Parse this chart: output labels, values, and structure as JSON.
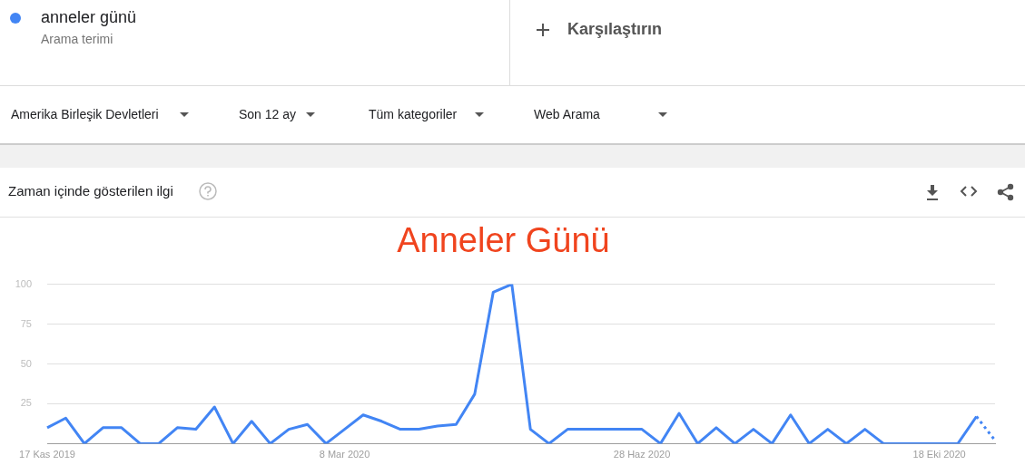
{
  "chart_data": {
    "type": "line",
    "title": "Anneler Günü",
    "categories": [
      "17 Kas 2019",
      null,
      null,
      null,
      null,
      null,
      null,
      null,
      null,
      null,
      null,
      null,
      null,
      null,
      null,
      null,
      "8 Mar 2020",
      null,
      null,
      null,
      null,
      null,
      null,
      null,
      null,
      null,
      null,
      null,
      null,
      null,
      null,
      null,
      "28 Haz 2020",
      null,
      null,
      null,
      null,
      null,
      null,
      null,
      null,
      null,
      null,
      null,
      null,
      null,
      null,
      null,
      "18 Eki 2020",
      null,
      null,
      null
    ],
    "series": [
      {
        "color": "#4285f4",
        "line_style": "solid",
        "values": [
          10,
          16,
          0,
          10,
          10,
          0,
          0,
          10,
          9,
          23,
          0,
          14,
          0,
          9,
          12,
          0,
          9,
          18,
          14,
          9,
          9,
          11,
          12,
          31,
          95,
          100,
          9,
          0,
          9,
          9,
          9,
          9,
          9,
          0,
          19,
          0,
          10,
          0,
          9,
          0,
          18,
          0,
          9,
          0,
          9,
          0,
          0,
          0,
          0,
          0,
          17,
          null
        ]
      },
      {
        "color": "#4285f4",
        "line_style": "dotted",
        "values": [
          null,
          null,
          null,
          null,
          null,
          null,
          null,
          null,
          null,
          null,
          null,
          null,
          null,
          null,
          null,
          null,
          null,
          null,
          null,
          null,
          null,
          null,
          null,
          null,
          null,
          null,
          null,
          null,
          null,
          null,
          null,
          null,
          null,
          null,
          null,
          null,
          null,
          null,
          null,
          null,
          null,
          null,
          null,
          null,
          null,
          null,
          null,
          null,
          null,
          null,
          17,
          2
        ]
      }
    ],
    "ylim": [
      0,
      100
    ],
    "yticks": [
      25,
      50,
      75,
      100
    ],
    "grid": "y",
    "legend": false,
    "marker": "none",
    "annotations": [
      "anneler günü",
      "Arama terimi",
      "Karşılaştırın",
      "Amerika Birleşik Devletleri",
      "Son 12 ay",
      "Tüm kategoriler",
      "Web Arama",
      "Zaman içinde gösterilen ilgi"
    ]
  }
}
